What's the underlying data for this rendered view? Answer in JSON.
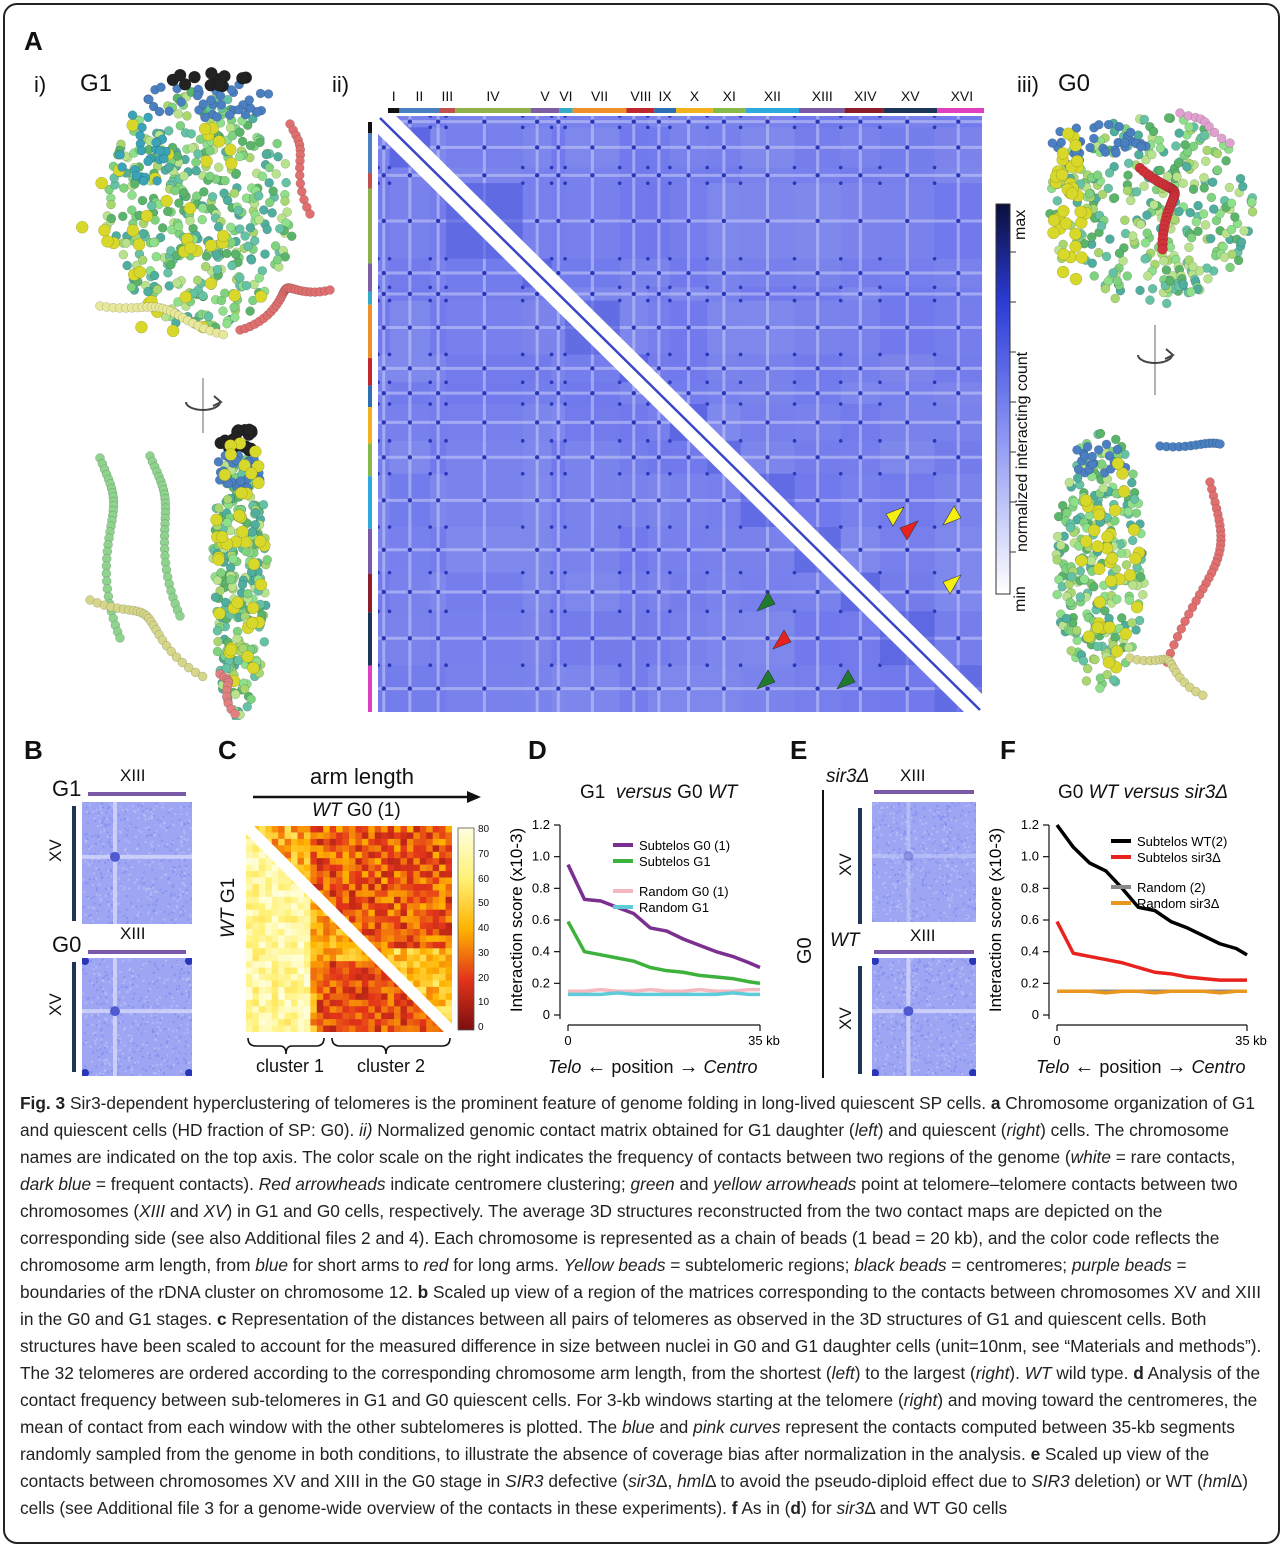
{
  "panelA": {
    "label": "A",
    "i_label": "i)",
    "i_stage": "G1",
    "ii_label": "ii)",
    "iii_label": "iii)",
    "iii_stage": "G0",
    "chromosomes": [
      "I",
      "II",
      "III",
      "IV",
      "V",
      "VI",
      "VII",
      "VIII",
      "IX",
      "X",
      "XI",
      "XII",
      "XIII",
      "XIV",
      "XV",
      "XVI"
    ],
    "chrom_colors": [
      "#111111",
      "#4a7fc1",
      "#c0504d",
      "#8fb04a",
      "#7e5fa6",
      "#35aac6",
      "#f0902a",
      "#c0282d",
      "#2c6fb5",
      "#f2b21f",
      "#86b94a",
      "#2fa8db",
      "#7a5aa8",
      "#8b1c2a",
      "#1d3557",
      "#e040c0"
    ],
    "colorbar_max": "max",
    "colorbar_min": "min",
    "colorbar_title": "normalized interacting count",
    "matrix_base": "#5a66e6",
    "arrow_red": "#e8231e",
    "arrow_green": "#1f7a2e",
    "arrow_yellow": "#f4ee12"
  },
  "panelB": {
    "label": "B",
    "g1": "G1",
    "g0": "G0",
    "top_chrom": "XIII",
    "side_chrom": "XV",
    "top_color": "#7a5aa8",
    "side_color": "#1d3557"
  },
  "panelC": {
    "label": "C",
    "arm_length": "arm length",
    "top_title_wt": "WT",
    "top_title_rest": "G0 (1)",
    "side_title_wt": "WT",
    "side_title_rest": "G1",
    "cluster1": "cluster 1",
    "cluster2": "cluster 2",
    "scale_ticks": [
      "80",
      "70",
      "60",
      "50",
      "40",
      "30",
      "20",
      "10",
      "0"
    ]
  },
  "panelD": {
    "label": "D",
    "title_a": "G1",
    "title_b": "versus",
    "title_c": "G0",
    "title_d": "WT",
    "ylabel": "Interaction score (x10-3)",
    "yticks": [
      "1.2",
      "1.0",
      "0.8",
      "0.6",
      "0.4",
      "0.2",
      "0"
    ],
    "xtick_left": "0",
    "xtick_right": "35 kb",
    "x_telo": "Telo",
    "x_position": "position",
    "x_centro": "Centro"
  },
  "panelE": {
    "label": "E",
    "top_strain": "sir3Δ",
    "bottom_strain": "WT",
    "stage": "G0",
    "top_chrom": "XIII",
    "side_chrom": "XV"
  },
  "panelF": {
    "label": "F",
    "title_a": "G0",
    "title_b": "WT versus sir3Δ",
    "ylabel": "Interaction score (x10-3)",
    "yticks": [
      "1.2",
      "1.0",
      "0.8",
      "0.6",
      "0.4",
      "0.2",
      "0"
    ],
    "xtick_left": "0",
    "xtick_right": "35 kb",
    "x_telo": "Telo",
    "x_position": "position",
    "x_centro": "Centro"
  },
  "chart_data": [
    {
      "type": "line",
      "panel": "D",
      "title": "G1 versus G0 WT",
      "ylabel": "Interaction score (x10-3)",
      "xlabel": "Telo position Centro",
      "xlim": [
        0,
        35
      ],
      "ylim": [
        0,
        1.2
      ],
      "x": [
        0,
        3,
        6,
        9,
        12,
        15,
        18,
        21,
        24,
        27,
        30,
        33,
        35
      ],
      "series": [
        {
          "name": "Subtelos G0 (1)",
          "color": "#7b2f8e",
          "values": [
            0.95,
            0.73,
            0.72,
            0.68,
            0.64,
            0.55,
            0.53,
            0.48,
            0.44,
            0.4,
            0.37,
            0.33,
            0.3
          ]
        },
        {
          "name": "Subtelos G1",
          "color": "#3cb23c",
          "values": [
            0.59,
            0.4,
            0.38,
            0.36,
            0.34,
            0.3,
            0.28,
            0.27,
            0.25,
            0.24,
            0.23,
            0.21,
            0.2
          ]
        },
        {
          "name": "Random G0 (1)",
          "color": "#f5b8c0",
          "values": [
            0.15,
            0.15,
            0.16,
            0.15,
            0.15,
            0.16,
            0.15,
            0.15,
            0.16,
            0.15,
            0.15,
            0.16,
            0.16
          ]
        },
        {
          "name": "Random G1",
          "color": "#5ecbd8",
          "values": [
            0.13,
            0.13,
            0.13,
            0.14,
            0.13,
            0.13,
            0.13,
            0.13,
            0.13,
            0.13,
            0.14,
            0.13,
            0.13
          ]
        }
      ]
    },
    {
      "type": "line",
      "panel": "F",
      "title": "G0 WT versus sir3Δ",
      "ylabel": "Interaction score (x10-3)",
      "xlabel": "Telo position Centro",
      "xlim": [
        0,
        35
      ],
      "ylim": [
        0,
        1.2
      ],
      "x": [
        0,
        3,
        6,
        9,
        12,
        15,
        18,
        21,
        24,
        27,
        30,
        33,
        35
      ],
      "series": [
        {
          "name": "Subtelos WT(2)",
          "color": "#000000",
          "values": [
            1.2,
            1.06,
            0.96,
            0.91,
            0.8,
            0.68,
            0.66,
            0.59,
            0.55,
            0.5,
            0.45,
            0.42,
            0.38
          ]
        },
        {
          "name": "Subtelos sir3Δ",
          "color": "#e8231e",
          "values": [
            0.59,
            0.39,
            0.37,
            0.35,
            0.33,
            0.3,
            0.27,
            0.26,
            0.24,
            0.23,
            0.22,
            0.22,
            0.22
          ]
        },
        {
          "name": "Random (2)",
          "color": "#888888",
          "values": [
            0.15,
            0.15,
            0.15,
            0.15,
            0.15,
            0.15,
            0.15,
            0.15,
            0.15,
            0.15,
            0.15,
            0.15,
            0.15
          ]
        },
        {
          "name": "Random sir3Δ",
          "color": "#e8961e",
          "values": [
            0.15,
            0.15,
            0.15,
            0.14,
            0.15,
            0.15,
            0.14,
            0.15,
            0.15,
            0.15,
            0.14,
            0.15,
            0.15
          ]
        }
      ]
    }
  ],
  "caption": {
    "p01": "Fig. 3",
    "p02": " Sir3-dependent hyperclustering of telomeres is the prominent feature of genome folding in long-lived quiescent SP cells. ",
    "p03": "a",
    "p04": " Chromosome organization of G1 and quiescent cells (HD fraction of SP: G0). ",
    "p05": "ii)",
    "p06": " Normalized genomic contact matrix obtained for G1 daughter (",
    "p07": "left",
    "p08": ") and quiescent (",
    "p09": "right",
    "p10": ") cells. The chromosome names are indicated on the top axis. The color scale on the right indicates the frequency of contacts between two regions of the genome (",
    "p11": "white",
    "p12": " = rare contacts, ",
    "p13": "dark blue",
    "p14": " = frequent contacts). ",
    "p15": "Red arrowheads",
    "p16": " indicate centromere clustering; ",
    "p17": "green",
    "p18": " and ",
    "p19": "yellow arrowheads",
    "p20": " point at telomere–telomere contacts between two chromosomes (",
    "p21": "XIII",
    "p22": " and ",
    "p23": "XV",
    "p24": ") in G1 and G0 cells, respectively. The average 3D structures reconstructed from the two contact maps are depicted on the corresponding side (see also Additional files 2 and 4). Each chromosome is represented as a chain of beads (1 bead = 20 kb), and the color code reflects the chromosome arm length, from ",
    "p25": "blue",
    "p26": " for short arms to ",
    "p27": "red",
    "p28": " for long arms. ",
    "p29": "Yellow beads",
    "p30": " = subtelomeric regions; ",
    "p31": "black beads",
    "p32": " = centromeres; ",
    "p33": "purple beads",
    "p34": " = boundaries of the rDNA cluster on chromosome 12. ",
    "p35": "b",
    "p36": " Scaled up view of a region of the matrices corresponding to the contacts between chromosomes XV and XIII in the G0 and G1 stages. ",
    "p37": "c",
    "p38": " Representation of the distances between all pairs of telomeres as observed in the 3D structures of G1 and quiescent cells. Both structures have been scaled to account for the measured difference in size between nuclei in G0 and G1 daughter cells (unit=10nm, see “Materials and methods”). The 32 telomeres are ordered according to the corresponding chromosome arm length, from the shortest (",
    "p39": "left",
    "p40": ") to the largest (",
    "p41": "right",
    "p42": "). ",
    "p43": "WT",
    "p44": " wild type. ",
    "p45": "d",
    "p46": " Analysis of the contact frequency between sub-telomeres in G1 and G0 quiescent cells. For 3-kb windows starting at the telomere (",
    "p47": "right",
    "p48": ") and moving toward the centromeres, the mean of contact from each window with the other subtelomeres is plotted. The ",
    "p49": "blue",
    "p50": " and ",
    "p51": "pink curves",
    "p52": " represent the contacts computed between 35-kb segments randomly sampled from the genome in both conditions, to illustrate the absence of coverage bias after normalization in the analysis. ",
    "p53": "e",
    "p54": " Scaled up view of the contacts between chromosomes XV and XIII in the G0 stage in ",
    "p55": "SIR3",
    "p56": " defective (",
    "p57": "sir3",
    "p58": "Δ, ",
    "p59": "hml",
    "p60": "Δ to avoid the pseudo-diploid effect due to ",
    "p61": "SIR3",
    "p62": " deletion) or WT (",
    "p63": "hml",
    "p64": "Δ) cells (see Additional file 3 for a genome-wide overview of the contacts in these experiments). ",
    "p65": "f",
    "p66": " As in (",
    "p67": "d",
    "p68": ") for ",
    "p69": "sir3",
    "p70": "Δ and WT G0 cells"
  }
}
